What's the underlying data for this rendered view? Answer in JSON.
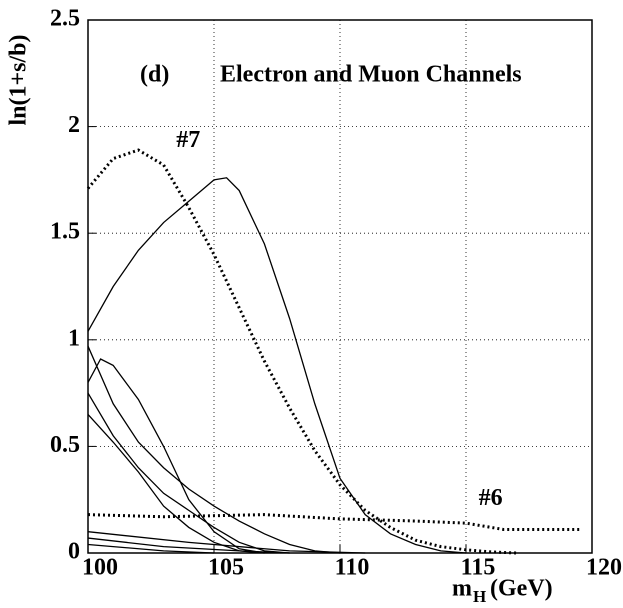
{
  "chart_data": {
    "type": "line",
    "y_label": "ln(1+s/b)",
    "x_label_main": "m",
    "x_label_sub": "H",
    "x_label_unit": "(GeV)",
    "panel_label": "(d)",
    "title": "Electron and Muon Channels",
    "xlim": [
      100,
      120
    ],
    "ylim": [
      0,
      2.5
    ],
    "xticks": [
      100,
      105,
      110,
      115,
      120
    ],
    "yticks": [
      0,
      0.5,
      1,
      1.5,
      2,
      2.5
    ],
    "grid": true,
    "annotations": [
      {
        "text": "#7",
        "x": 103.5,
        "y": 1.93
      },
      {
        "text": "#6",
        "x": 115.5,
        "y": 0.25
      }
    ],
    "series": [
      {
        "color": "#000000",
        "dash": "dotted",
        "x": [
          100,
          101,
          102,
          103,
          104,
          105,
          106,
          107,
          108,
          109,
          110,
          111,
          112,
          113,
          114,
          115,
          116,
          117
        ],
        "values": [
          1.71,
          1.85,
          1.89,
          1.82,
          1.62,
          1.4,
          1.15,
          0.9,
          0.68,
          0.48,
          0.32,
          0.2,
          0.12,
          0.06,
          0.03,
          0.015,
          0.005,
          0
        ]
      },
      {
        "color": "#000000",
        "dash": "dotted",
        "x": [
          100,
          103,
          107,
          110,
          113,
          115,
          116.5,
          119.5
        ],
        "values": [
          0.18,
          0.17,
          0.18,
          0.16,
          0.15,
          0.14,
          0.11,
          0.11
        ]
      },
      {
        "color": "#000000",
        "dash": "solid",
        "x": [
          100,
          101,
          102,
          103,
          104,
          105,
          105.5,
          106,
          107,
          108,
          109,
          110,
          111,
          112,
          113,
          114,
          115
        ],
        "values": [
          1.04,
          1.25,
          1.42,
          1.55,
          1.65,
          1.75,
          1.76,
          1.7,
          1.45,
          1.1,
          0.7,
          0.35,
          0.18,
          0.09,
          0.04,
          0.01,
          0
        ]
      },
      {
        "color": "#000000",
        "dash": "solid",
        "x": [
          100,
          100.5,
          101,
          102,
          103,
          104,
          105,
          106,
          107
        ],
        "values": [
          0.8,
          0.91,
          0.88,
          0.72,
          0.5,
          0.25,
          0.1,
          0.02,
          0
        ]
      },
      {
        "color": "#000000",
        "dash": "solid",
        "x": [
          100,
          101,
          102,
          103,
          104,
          105,
          106,
          107,
          108
        ],
        "values": [
          0.75,
          0.55,
          0.4,
          0.28,
          0.2,
          0.12,
          0.05,
          0.01,
          0
        ]
      },
      {
        "color": "#000000",
        "dash": "solid",
        "x": [
          100,
          101,
          102,
          103,
          104,
          105,
          106,
          107
        ],
        "values": [
          0.65,
          0.52,
          0.38,
          0.22,
          0.12,
          0.05,
          0.01,
          0
        ]
      },
      {
        "color": "#000000",
        "dash": "solid",
        "x": [
          100,
          101,
          102,
          103,
          104,
          105,
          106,
          107,
          108,
          109,
          110
        ],
        "values": [
          0.97,
          0.7,
          0.52,
          0.4,
          0.3,
          0.22,
          0.15,
          0.09,
          0.04,
          0.01,
          0
        ]
      },
      {
        "color": "#000000",
        "dash": "solid",
        "x": [
          100,
          104,
          108,
          111
        ],
        "values": [
          0.1,
          0.05,
          0.01,
          0
        ]
      },
      {
        "color": "#000000",
        "dash": "solid",
        "x": [
          100,
          103,
          106,
          108
        ],
        "values": [
          0.07,
          0.03,
          0.01,
          0
        ]
      },
      {
        "color": "#000000",
        "dash": "solid",
        "x": [
          100,
          103,
          105
        ],
        "values": [
          0.04,
          0.01,
          0
        ]
      }
    ]
  }
}
